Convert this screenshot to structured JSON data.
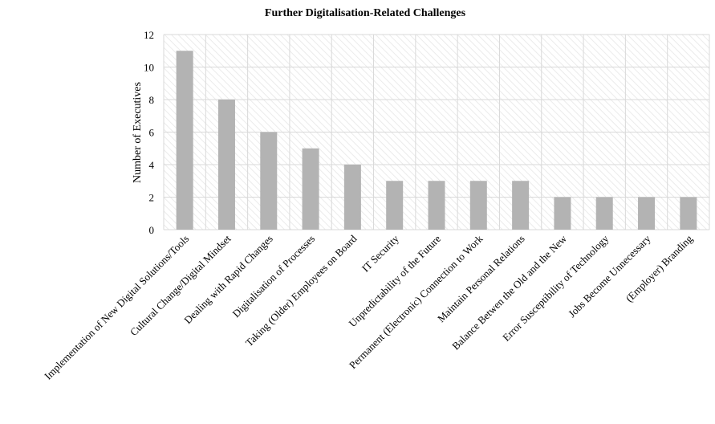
{
  "chart_data": {
    "type": "bar",
    "title": "Further Digitalisation-Related Challenges",
    "xlabel": "",
    "ylabel": "Number of Executives",
    "ylim": [
      0,
      12
    ],
    "yticks": [
      0,
      2,
      4,
      6,
      8,
      10,
      12
    ],
    "grid": true,
    "categories": [
      "Implementation of New Digital Solutions/Tools",
      "Cultural Change/Digital Mindset",
      "Dealing with Rapid Changes",
      "Digitalisation of Processes",
      "Taking (Older) Employees on Board",
      "IT Security",
      "Unpredictability of the Future",
      "Permanent (Electronic) Connection to Work",
      "Maintain Personal Relations",
      "Balance Betwen the Old and the New",
      "Error Susceptibility of Technology",
      "Jobs Become Unnecessary",
      "(Employer) Branding"
    ],
    "values": [
      11,
      8,
      6,
      5,
      4,
      3,
      3,
      3,
      3,
      2,
      2,
      2,
      2
    ],
    "colors": {
      "bar": "#b3b3b3",
      "grid": "#d9d9d9",
      "hatch": "#ebebeb"
    }
  }
}
